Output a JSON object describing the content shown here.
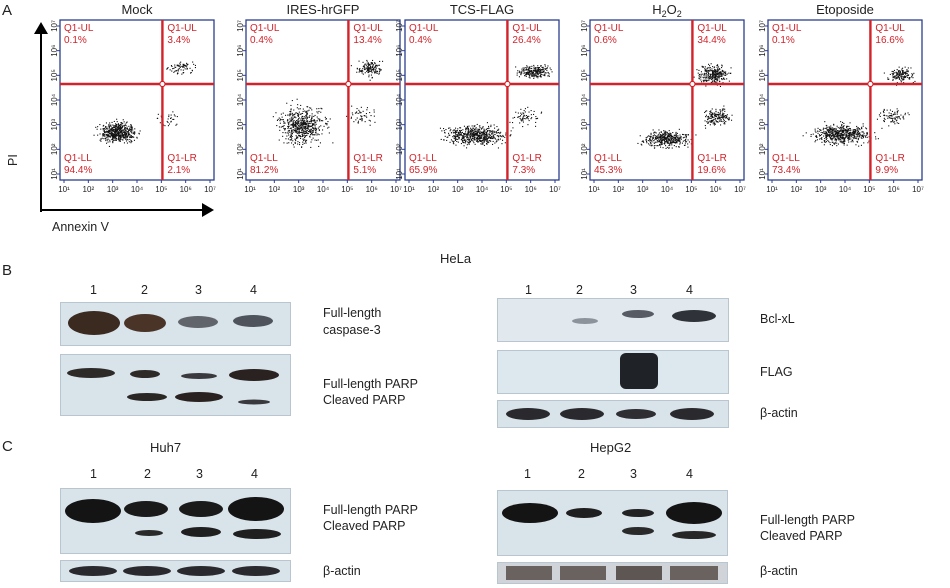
{
  "panels": {
    "a": "A",
    "b": "B",
    "c": "C"
  },
  "flow": {
    "x_axis_label": "Annexin V",
    "y_axis_label": "PI",
    "ticks": [
      "10¹",
      "10²",
      "10³",
      "10⁴",
      "10⁵",
      "10⁶",
      "10⁷"
    ],
    "plots": [
      {
        "title": "Mock",
        "title_sub": "",
        "ul": "Q1-UL",
        "ul_pct": "0.1%",
        "ur": "Q1-UL",
        "ur_pct": "3.4%",
        "ll": "Q1-LL",
        "ll_pct": "94.4%",
        "lr": "Q1-LR",
        "lr_pct": "2.1%"
      },
      {
        "title": "IRES-hrGFP",
        "title_sub": "",
        "ul": "Q1-UL",
        "ul_pct": "0.4%",
        "ur": "Q1-UL",
        "ur_pct": "13.4%",
        "ll": "Q1-LL",
        "ll_pct": "81.2%",
        "lr": "Q1-LR",
        "lr_pct": "5.1%"
      },
      {
        "title": "TCS-FLAG",
        "title_sub": "",
        "ul": "Q1-UL",
        "ul_pct": "0.4%",
        "ur": "Q1-UL",
        "ur_pct": "26.4%",
        "ll": "Q1-LL",
        "ll_pct": "65.9%",
        "lr": "Q1-LR",
        "lr_pct": "7.3%"
      },
      {
        "title": "H",
        "title_sub": "2",
        "title_mid": "O",
        "title_sub2": "2",
        "ul": "Q1-UL",
        "ul_pct": "0.6%",
        "ur": "Q1-UL",
        "ur_pct": "34.4%",
        "ll": "Q1-LL",
        "ll_pct": "45.3%",
        "lr": "Q1-LR",
        "lr_pct": "19.6%"
      },
      {
        "title": "Etoposide",
        "title_sub": "",
        "ul": "Q1-UL",
        "ul_pct": "0.1%",
        "ur": "Q1-UL",
        "ur_pct": "16.6%",
        "ll": "Q1-LL",
        "ll_pct": "73.4%",
        "lr": "Q1-LR",
        "lr_pct": "9.9%"
      }
    ]
  },
  "hela": {
    "title": "HeLa",
    "lanes": [
      "1",
      "2",
      "3",
      "4"
    ],
    "labels": {
      "caspase_1": "Full-length",
      "caspase_2": "caspase-3",
      "parp_full": "Full-length PARP",
      "parp_cleaved": "Cleaved PARP",
      "bclxl": "Bcl-xL",
      "flag": "FLAG",
      "actin": "β-actin"
    }
  },
  "huh7": {
    "title": "Huh7",
    "lanes": [
      "1",
      "2",
      "3",
      "4"
    ],
    "labels": {
      "parp_full": "Full-length PARP",
      "parp_cleaved": "Cleaved PARP",
      "actin": "β-actin"
    }
  },
  "hepg2": {
    "title": "HepG2",
    "lanes": [
      "1",
      "2",
      "3",
      "4"
    ],
    "labels": {
      "parp_full": "Full-length PARP",
      "parp_cleaved": "Cleaved PARP",
      "actin": "β-actin"
    }
  },
  "colors": {
    "quadrant_line": "#d2232a",
    "plot_frame": "#2b3f8f",
    "quadrant_text": "#d2232a",
    "band": "#1a1a1a"
  }
}
